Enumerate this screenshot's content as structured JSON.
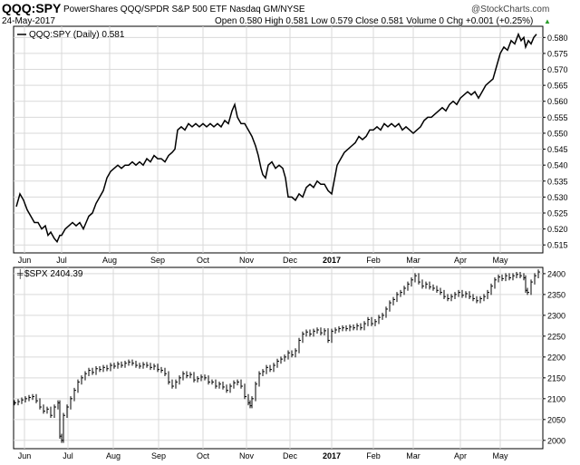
{
  "header": {
    "symbol": "QQQ:SPY",
    "description": "PowerShares QQQ/SPDR S&P 500 ETF  Nasdaq GM/NYSE",
    "date": "24-May-2017",
    "quote": "Open 0.580  High 0.581  Low 0.579  Close 0.581  Volume 0  Chg +0.001 (+0.25%)",
    "quote_arrow": "▲",
    "watermark": "@StockCharts.com"
  },
  "colors": {
    "line": "#000000",
    "grid": "#d9d9d9",
    "axis": "#000000",
    "background": "#ffffff",
    "text": "#000000"
  },
  "chart_data": [
    {
      "type": "line",
      "legend": "QQQ:SPY (Daily) 0.581",
      "x_ticks": [
        "Jun",
        "Jul",
        "Aug",
        "Sep",
        "Oct",
        "Nov",
        "Dec",
        "2017",
        "Feb",
        "Mar",
        "Apr",
        "May"
      ],
      "x_tick_positions": [
        27,
        68,
        121,
        174,
        224,
        272,
        320,
        366,
        412,
        456,
        508,
        552
      ],
      "ylim": [
        0.5125,
        0.5835
      ],
      "y_ticks": [
        0.515,
        0.52,
        0.525,
        0.53,
        0.535,
        0.54,
        0.545,
        0.55,
        0.555,
        0.56,
        0.565,
        0.57,
        0.575,
        0.58
      ],
      "y_tick_labels": [
        "0.515",
        "0.520",
        "0.525",
        "0.530",
        "0.535",
        "0.540",
        "0.545",
        "0.550",
        "0.555",
        "0.560",
        "0.565",
        "0.570",
        "0.575",
        "0.580"
      ],
      "points": [
        [
          18,
          0.527
        ],
        [
          22,
          0.531
        ],
        [
          26,
          0.529
        ],
        [
          30,
          0.526
        ],
        [
          34,
          0.524
        ],
        [
          38,
          0.522
        ],
        [
          42,
          0.522
        ],
        [
          46,
          0.52
        ],
        [
          50,
          0.521
        ],
        [
          53,
          0.518
        ],
        [
          56,
          0.519
        ],
        [
          60,
          0.517
        ],
        [
          63,
          0.516
        ],
        [
          66,
          0.518
        ],
        [
          68,
          0.518
        ],
        [
          72,
          0.52
        ],
        [
          76,
          0.521
        ],
        [
          80,
          0.522
        ],
        [
          84,
          0.521
        ],
        [
          88,
          0.522
        ],
        [
          92,
          0.52
        ],
        [
          95,
          0.522
        ],
        [
          98,
          0.524
        ],
        [
          102,
          0.525
        ],
        [
          106,
          0.528
        ],
        [
          110,
          0.53
        ],
        [
          114,
          0.532
        ],
        [
          118,
          0.536
        ],
        [
          122,
          0.538
        ],
        [
          126,
          0.539
        ],
        [
          130,
          0.54
        ],
        [
          134,
          0.539
        ],
        [
          138,
          0.54
        ],
        [
          142,
          0.54
        ],
        [
          146,
          0.541
        ],
        [
          150,
          0.54
        ],
        [
          154,
          0.541
        ],
        [
          158,
          0.54
        ],
        [
          162,
          0.542
        ],
        [
          166,
          0.541
        ],
        [
          170,
          0.543
        ],
        [
          174,
          0.542
        ],
        [
          178,
          0.542
        ],
        [
          182,
          0.541
        ],
        [
          186,
          0.543
        ],
        [
          190,
          0.544
        ],
        [
          193,
          0.545
        ],
        [
          196,
          0.551
        ],
        [
          200,
          0.552
        ],
        [
          204,
          0.551
        ],
        [
          208,
          0.553
        ],
        [
          212,
          0.552
        ],
        [
          216,
          0.553
        ],
        [
          220,
          0.552
        ],
        [
          224,
          0.553
        ],
        [
          228,
          0.552
        ],
        [
          232,
          0.553
        ],
        [
          236,
          0.552
        ],
        [
          240,
          0.553
        ],
        [
          244,
          0.552
        ],
        [
          248,
          0.554
        ],
        [
          252,
          0.553
        ],
        [
          256,
          0.557
        ],
        [
          259,
          0.559
        ],
        [
          262,
          0.555
        ],
        [
          266,
          0.553
        ],
        [
          270,
          0.553
        ],
        [
          274,
          0.551
        ],
        [
          278,
          0.549
        ],
        [
          282,
          0.546
        ],
        [
          285,
          0.543
        ],
        [
          288,
          0.539
        ],
        [
          290,
          0.537
        ],
        [
          293,
          0.536
        ],
        [
          296,
          0.54
        ],
        [
          300,
          0.541
        ],
        [
          304,
          0.539
        ],
        [
          308,
          0.54
        ],
        [
          312,
          0.539
        ],
        [
          315,
          0.536
        ],
        [
          318,
          0.53
        ],
        [
          322,
          0.53
        ],
        [
          326,
          0.529
        ],
        [
          330,
          0.531
        ],
        [
          334,
          0.53
        ],
        [
          338,
          0.533
        ],
        [
          342,
          0.534
        ],
        [
          346,
          0.533
        ],
        [
          350,
          0.535
        ],
        [
          354,
          0.534
        ],
        [
          358,
          0.534
        ],
        [
          362,
          0.532
        ],
        [
          366,
          0.531
        ],
        [
          368,
          0.534
        ],
        [
          372,
          0.54
        ],
        [
          376,
          0.542
        ],
        [
          380,
          0.544
        ],
        [
          384,
          0.545
        ],
        [
          388,
          0.546
        ],
        [
          392,
          0.547
        ],
        [
          396,
          0.549
        ],
        [
          400,
          0.548
        ],
        [
          404,
          0.549
        ],
        [
          408,
          0.551
        ],
        [
          412,
          0.551
        ],
        [
          416,
          0.552
        ],
        [
          420,
          0.551
        ],
        [
          424,
          0.553
        ],
        [
          428,
          0.552
        ],
        [
          432,
          0.553
        ],
        [
          436,
          0.552
        ],
        [
          440,
          0.553
        ],
        [
          444,
          0.551
        ],
        [
          448,
          0.552
        ],
        [
          452,
          0.551
        ],
        [
          456,
          0.55
        ],
        [
          460,
          0.551
        ],
        [
          464,
          0.552
        ],
        [
          468,
          0.554
        ],
        [
          472,
          0.555
        ],
        [
          476,
          0.555
        ],
        [
          480,
          0.556
        ],
        [
          484,
          0.557
        ],
        [
          488,
          0.558
        ],
        [
          492,
          0.557
        ],
        [
          496,
          0.559
        ],
        [
          500,
          0.56
        ],
        [
          504,
          0.559
        ],
        [
          508,
          0.561
        ],
        [
          512,
          0.562
        ],
        [
          516,
          0.563
        ],
        [
          520,
          0.562
        ],
        [
          524,
          0.563
        ],
        [
          528,
          0.561
        ],
        [
          532,
          0.563
        ],
        [
          536,
          0.565
        ],
        [
          540,
          0.566
        ],
        [
          544,
          0.567
        ],
        [
          548,
          0.571
        ],
        [
          552,
          0.575
        ],
        [
          556,
          0.577
        ],
        [
          560,
          0.576
        ],
        [
          564,
          0.579
        ],
        [
          568,
          0.578
        ],
        [
          572,
          0.581
        ],
        [
          575,
          0.579
        ],
        [
          578,
          0.58
        ],
        [
          580,
          0.577
        ],
        [
          583,
          0.579
        ],
        [
          586,
          0.578
        ],
        [
          589,
          0.58
        ],
        [
          592,
          0.581
        ]
      ]
    },
    {
      "type": "line",
      "legend": "$SPX 2404.39",
      "x_ticks": [
        "Jun",
        "Jul",
        "Aug",
        "Sep",
        "Oct",
        "Nov",
        "Dec",
        "2017",
        "Feb",
        "Mar",
        "Apr",
        "May"
      ],
      "x_tick_positions": [
        27,
        75,
        125,
        175,
        224,
        272,
        320,
        366,
        412,
        456,
        508,
        552
      ],
      "ylim": [
        1980,
        2415
      ],
      "y_ticks": [
        2000,
        2050,
        2100,
        2150,
        2200,
        2250,
        2300,
        2350,
        2400
      ],
      "y_tick_labels": [
        "2000",
        "2050",
        "2100",
        "2150",
        "2200",
        "2250",
        "2300",
        "2350",
        "2400"
      ],
      "points": [
        [
          16,
          2090
        ],
        [
          20,
          2093
        ],
        [
          24,
          2097
        ],
        [
          28,
          2100
        ],
        [
          32,
          2103
        ],
        [
          36,
          2105
        ],
        [
          40,
          2095
        ],
        [
          44,
          2080
        ],
        [
          48,
          2070
        ],
        [
          52,
          2075
        ],
        [
          56,
          2060
        ],
        [
          60,
          2080
        ],
        [
          64,
          2090
        ],
        [
          66,
          2010
        ],
        [
          68,
          2000
        ],
        [
          70,
          2060
        ],
        [
          74,
          2080
        ],
        [
          78,
          2100
        ],
        [
          82,
          2120
        ],
        [
          86,
          2140
        ],
        [
          90,
          2150
        ],
        [
          94,
          2160
        ],
        [
          98,
          2168
        ],
        [
          102,
          2163
        ],
        [
          106,
          2172
        ],
        [
          110,
          2170
        ],
        [
          114,
          2175
        ],
        [
          118,
          2172
        ],
        [
          122,
          2180
        ],
        [
          126,
          2178
        ],
        [
          130,
          2183
        ],
        [
          134,
          2180
        ],
        [
          138,
          2185
        ],
        [
          142,
          2188
        ],
        [
          146,
          2185
        ],
        [
          150,
          2180
        ],
        [
          154,
          2178
        ],
        [
          158,
          2182
        ],
        [
          162,
          2180
        ],
        [
          166,
          2175
        ],
        [
          170,
          2178
        ],
        [
          174,
          2170
        ],
        [
          178,
          2168
        ],
        [
          182,
          2160
        ],
        [
          186,
          2140
        ],
        [
          190,
          2130
        ],
        [
          194,
          2140
        ],
        [
          198,
          2150
        ],
        [
          202,
          2160
        ],
        [
          206,
          2155
        ],
        [
          210,
          2158
        ],
        [
          214,
          2145
        ],
        [
          218,
          2148
        ],
        [
          222,
          2152
        ],
        [
          226,
          2150
        ],
        [
          230,
          2140
        ],
        [
          234,
          2140
        ],
        [
          238,
          2130
        ],
        [
          242,
          2135
        ],
        [
          246,
          2128
        ],
        [
          250,
          2120
        ],
        [
          254,
          2130
        ],
        [
          258,
          2138
        ],
        [
          262,
          2140
        ],
        [
          266,
          2130
        ],
        [
          270,
          2105
        ],
        [
          274,
          2090
        ],
        [
          276,
          2083
        ],
        [
          278,
          2100
        ],
        [
          282,
          2135
        ],
        [
          286,
          2160
        ],
        [
          290,
          2165
        ],
        [
          294,
          2175
        ],
        [
          298,
          2170
        ],
        [
          302,
          2180
        ],
        [
          306,
          2190
        ],
        [
          310,
          2195
        ],
        [
          314,
          2200
        ],
        [
          318,
          2210
        ],
        [
          322,
          2205
        ],
        [
          326,
          2215
        ],
        [
          330,
          2240
        ],
        [
          334,
          2255
        ],
        [
          338,
          2260
        ],
        [
          342,
          2255
        ],
        [
          346,
          2262
        ],
        [
          350,
          2265
        ],
        [
          354,
          2258
        ],
        [
          358,
          2263
        ],
        [
          362,
          2240
        ],
        [
          366,
          2262
        ],
        [
          370,
          2265
        ],
        [
          374,
          2268
        ],
        [
          378,
          2270
        ],
        [
          382,
          2268
        ],
        [
          386,
          2272
        ],
        [
          390,
          2270
        ],
        [
          394,
          2275
        ],
        [
          398,
          2270
        ],
        [
          402,
          2280
        ],
        [
          406,
          2290
        ],
        [
          410,
          2280
        ],
        [
          414,
          2285
        ],
        [
          418,
          2295
        ],
        [
          422,
          2300
        ],
        [
          426,
          2315
        ],
        [
          430,
          2330
        ],
        [
          434,
          2338
        ],
        [
          438,
          2350
        ],
        [
          442,
          2355
        ],
        [
          446,
          2365
        ],
        [
          450,
          2375
        ],
        [
          454,
          2385
        ],
        [
          458,
          2395
        ],
        [
          462,
          2380
        ],
        [
          466,
          2370
        ],
        [
          470,
          2375
        ],
        [
          474,
          2368
        ],
        [
          478,
          2365
        ],
        [
          482,
          2360
        ],
        [
          486,
          2355
        ],
        [
          490,
          2345
        ],
        [
          494,
          2340
        ],
        [
          498,
          2345
        ],
        [
          502,
          2350
        ],
        [
          506,
          2355
        ],
        [
          510,
          2348
        ],
        [
          514,
          2352
        ],
        [
          518,
          2345
        ],
        [
          522,
          2340
        ],
        [
          526,
          2335
        ],
        [
          530,
          2340
        ],
        [
          534,
          2345
        ],
        [
          538,
          2355
        ],
        [
          542,
          2370
        ],
        [
          546,
          2385
        ],
        [
          550,
          2392
        ],
        [
          554,
          2388
        ],
        [
          558,
          2395
        ],
        [
          562,
          2390
        ],
        [
          566,
          2395
        ],
        [
          570,
          2398
        ],
        [
          574,
          2395
        ],
        [
          578,
          2390
        ],
        [
          580,
          2360
        ],
        [
          582,
          2355
        ],
        [
          586,
          2380
        ],
        [
          590,
          2395
        ],
        [
          594,
          2404
        ]
      ]
    }
  ]
}
